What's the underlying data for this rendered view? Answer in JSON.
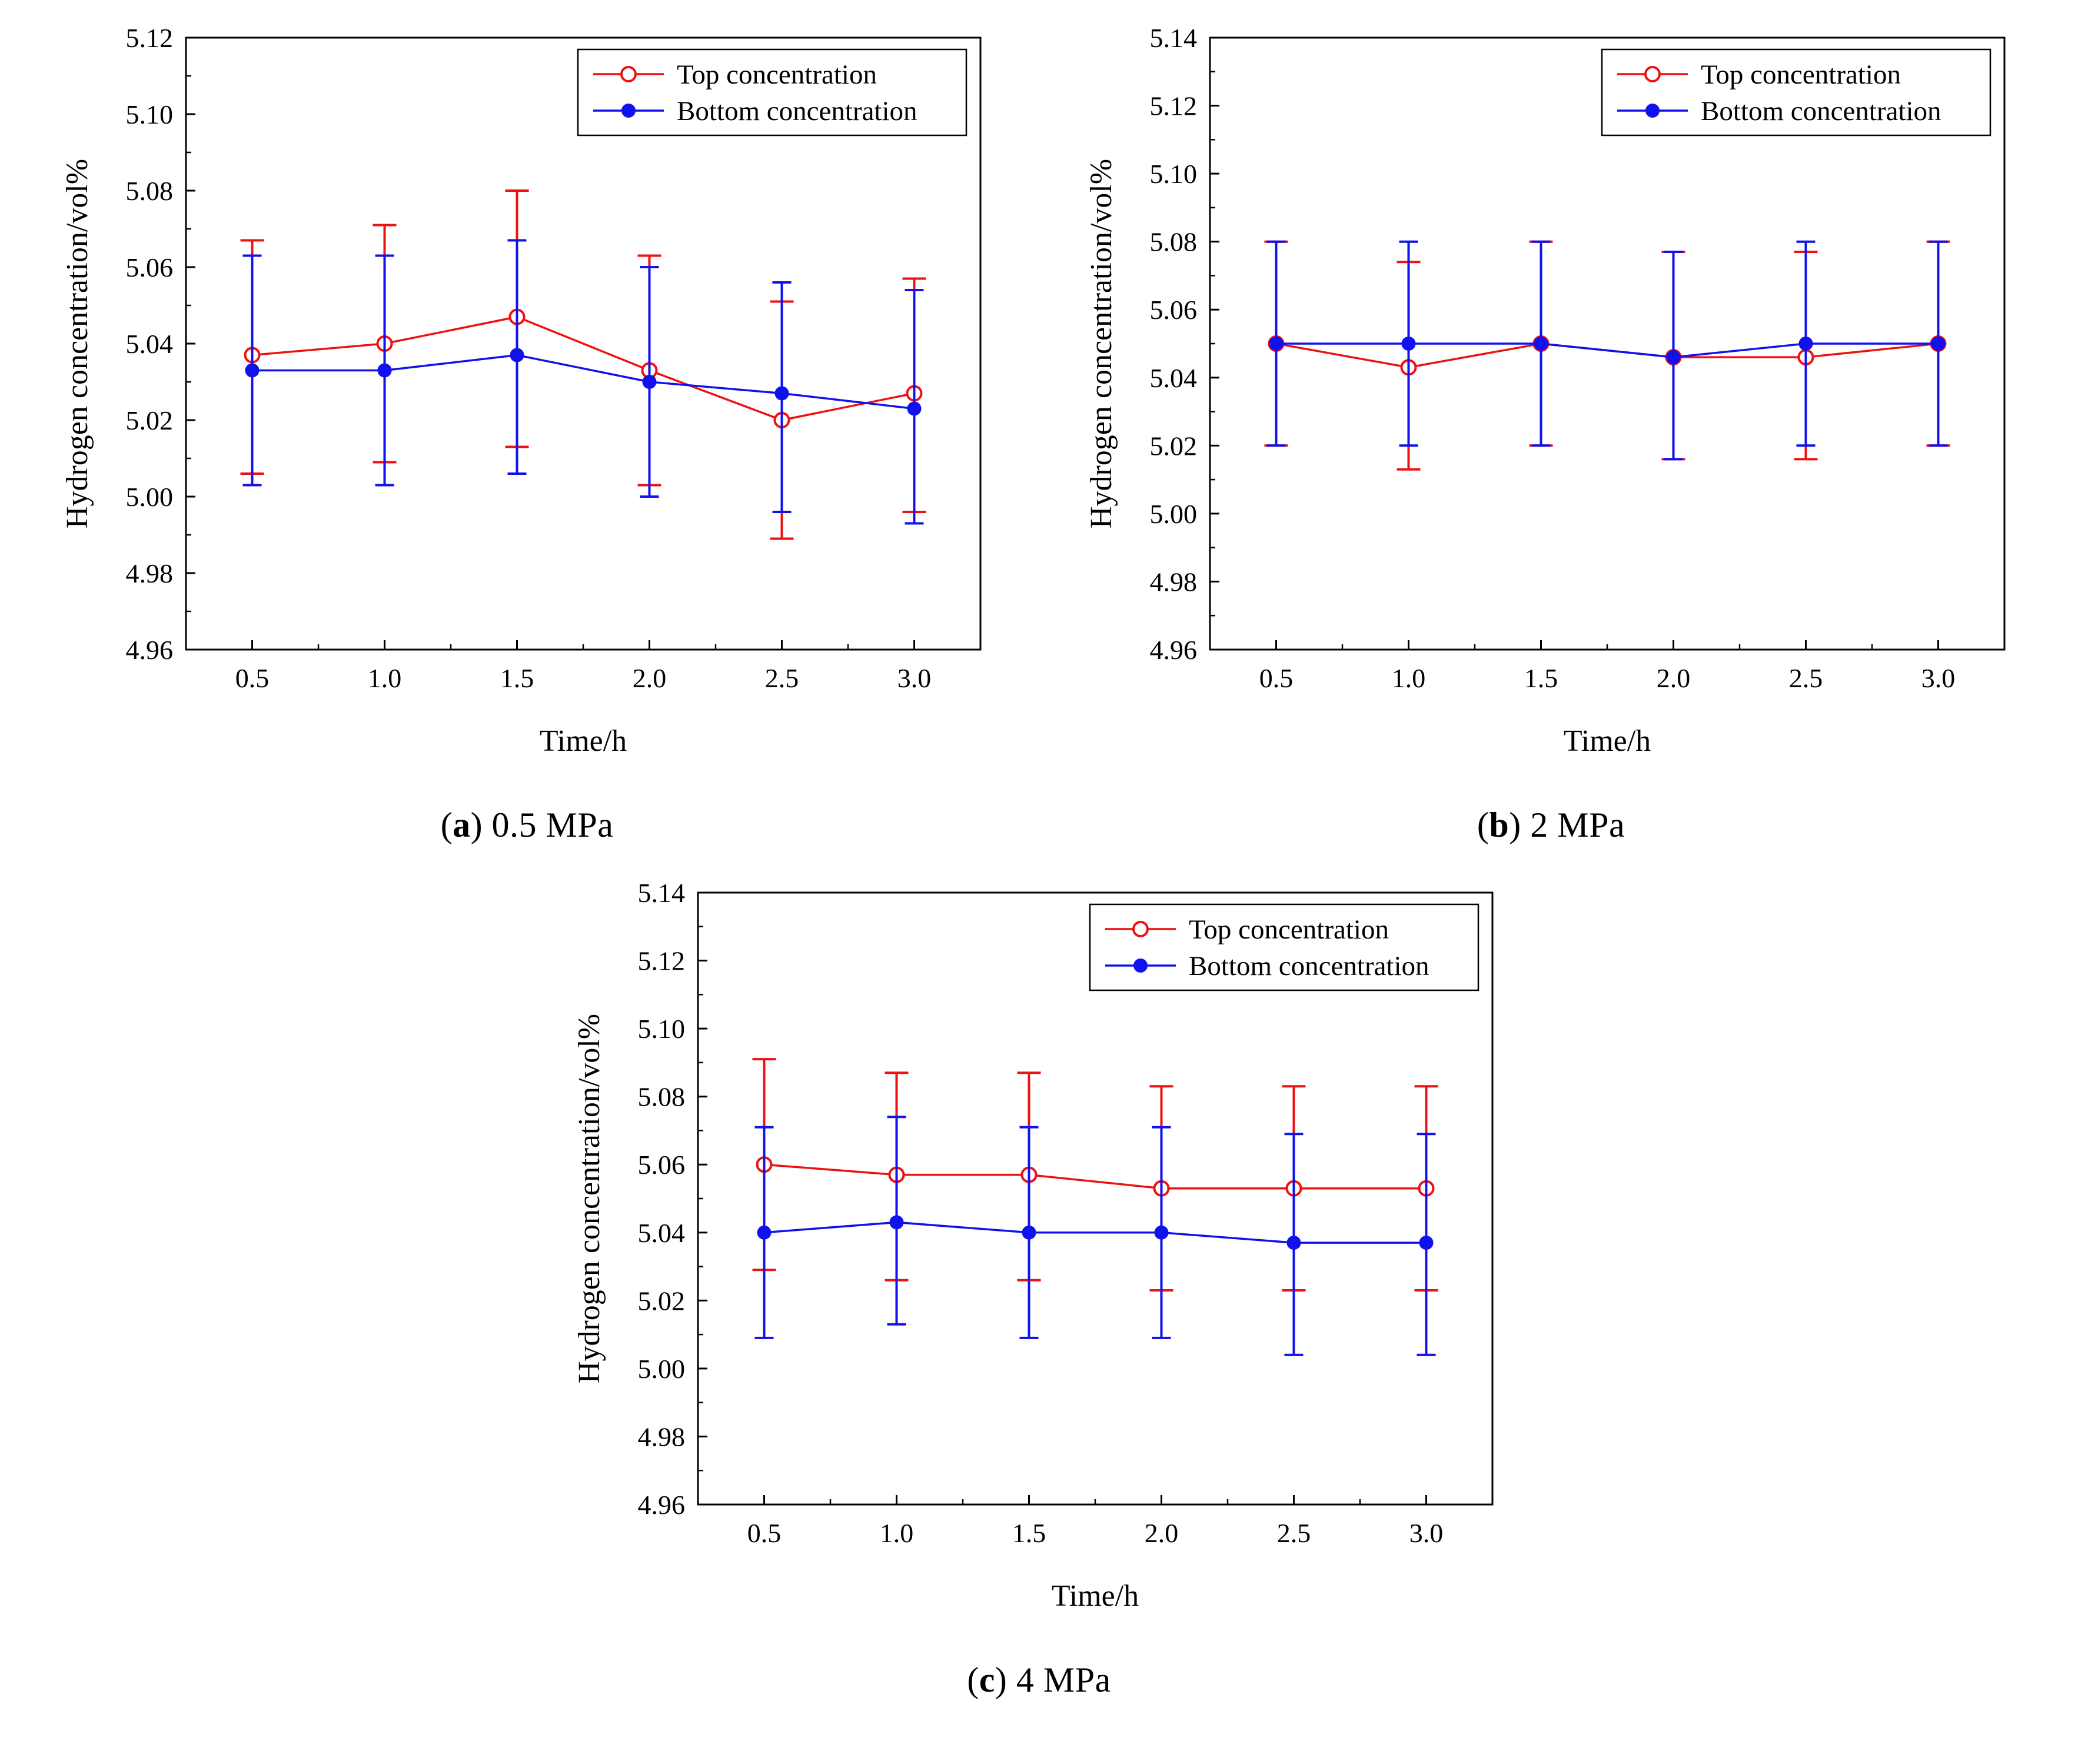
{
  "style": {
    "top_color": "#EE1111",
    "bottom_color": "#1111EE",
    "axis_color": "#000000",
    "background": "#ffffff"
  },
  "legend": {
    "top_label": "Top concentration",
    "bottom_label": "Bottom concentration"
  },
  "chart_data": [
    {
      "id": "a",
      "type": "line",
      "title": "",
      "caption": {
        "open": "(",
        "letter": "a",
        "close": ")",
        "label": " 0.5 MPa"
      },
      "xlabel": "Time/h",
      "ylabel": "Hydrogen concentration/vol%",
      "x": [
        0.5,
        1.0,
        1.5,
        2.0,
        2.5,
        3.0
      ],
      "xlim": [
        0.25,
        3.25
      ],
      "ylim": [
        4.96,
        5.12
      ],
      "ytick": 0.02,
      "grid": false,
      "legend_position": "top-right",
      "series": [
        {
          "name": "Top concentration",
          "color_key": "top",
          "marker": "open",
          "values": [
            5.037,
            5.04,
            5.047,
            5.033,
            5.02,
            5.027
          ],
          "err_lo": [
            5.006,
            5.009,
            5.013,
            5.003,
            4.989,
            4.996
          ],
          "err_hi": [
            5.067,
            5.071,
            5.08,
            5.063,
            5.051,
            5.057
          ]
        },
        {
          "name": "Bottom concentration",
          "color_key": "bottom",
          "marker": "filled",
          "values": [
            5.033,
            5.033,
            5.037,
            5.03,
            5.027,
            5.023
          ],
          "err_lo": [
            5.003,
            5.003,
            5.006,
            5.0,
            4.996,
            4.993
          ],
          "err_hi": [
            5.063,
            5.063,
            5.067,
            5.06,
            5.056,
            5.054
          ]
        }
      ]
    },
    {
      "id": "b",
      "type": "line",
      "title": "",
      "caption": {
        "open": "(",
        "letter": "b",
        "close": ")",
        "label": " 2 MPa"
      },
      "xlabel": "Time/h",
      "ylabel": "Hydrogen concentration/vol%",
      "x": [
        0.5,
        1.0,
        1.5,
        2.0,
        2.5,
        3.0
      ],
      "xlim": [
        0.25,
        3.25
      ],
      "ylim": [
        4.96,
        5.14
      ],
      "ytick": 0.02,
      "grid": false,
      "legend_position": "top-right",
      "series": [
        {
          "name": "Top concentration",
          "color_key": "top",
          "marker": "open",
          "values": [
            5.05,
            5.043,
            5.05,
            5.046,
            5.046,
            5.05
          ],
          "err_lo": [
            5.02,
            5.013,
            5.02,
            5.016,
            5.016,
            5.02
          ],
          "err_hi": [
            5.08,
            5.074,
            5.08,
            5.077,
            5.077,
            5.08
          ]
        },
        {
          "name": "Bottom concentration",
          "color_key": "bottom",
          "marker": "filled",
          "values": [
            5.05,
            5.05,
            5.05,
            5.046,
            5.05,
            5.05
          ],
          "err_lo": [
            5.02,
            5.02,
            5.02,
            5.016,
            5.02,
            5.02
          ],
          "err_hi": [
            5.08,
            5.08,
            5.08,
            5.077,
            5.08,
            5.08
          ]
        }
      ]
    },
    {
      "id": "c",
      "type": "line",
      "title": "",
      "caption": {
        "open": "(",
        "letter": "c",
        "close": ")",
        "label": " 4 MPa"
      },
      "xlabel": "Time/h",
      "ylabel": "Hydrogen concentration/vol%",
      "x": [
        0.5,
        1.0,
        1.5,
        2.0,
        2.5,
        3.0
      ],
      "xlim": [
        0.25,
        3.25
      ],
      "ylim": [
        4.96,
        5.14
      ],
      "ytick": 0.02,
      "grid": false,
      "legend_position": "top-right",
      "series": [
        {
          "name": "Top concentration",
          "color_key": "top",
          "marker": "open",
          "values": [
            5.06,
            5.057,
            5.057,
            5.053,
            5.053,
            5.053
          ],
          "err_lo": [
            5.029,
            5.026,
            5.026,
            5.023,
            5.023,
            5.023
          ],
          "err_hi": [
            5.091,
            5.087,
            5.087,
            5.083,
            5.083,
            5.083
          ]
        },
        {
          "name": "Bottom concentration",
          "color_key": "bottom",
          "marker": "filled",
          "values": [
            5.04,
            5.043,
            5.04,
            5.04,
            5.037,
            5.037
          ],
          "err_lo": [
            5.009,
            5.013,
            5.009,
            5.009,
            5.004,
            5.004
          ],
          "err_hi": [
            5.071,
            5.074,
            5.071,
            5.071,
            5.069,
            5.069
          ]
        }
      ]
    }
  ]
}
